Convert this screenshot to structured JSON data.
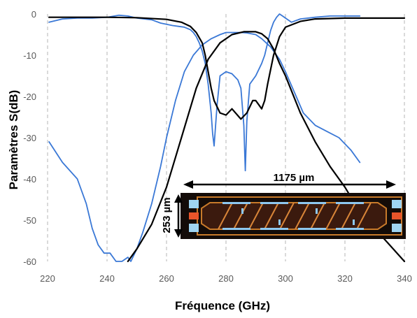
{
  "chart_data": {
    "type": "line",
    "xlabel": "Fréquence (GHz)",
    "ylabel": "Paramètres S(dB)",
    "xlim": [
      220,
      340
    ],
    "ylim": [
      -60,
      0
    ],
    "x_ticks": [
      "220",
      "240",
      "260",
      "280",
      "300",
      "320",
      "340"
    ],
    "y_ticks": [
      "0",
      "-10",
      "-20",
      "-30",
      "-40",
      "-50",
      "-60"
    ],
    "grid": "vertical dashed",
    "series": [
      {
        "color": "#3a78d6",
        "x": [
          220.5,
          225,
          230,
          235,
          240,
          244,
          247,
          250,
          255,
          258,
          260,
          262,
          264,
          266,
          268,
          269,
          270,
          271,
          272,
          273,
          274,
          275,
          275.5,
          276,
          277,
          278,
          280,
          282,
          284,
          285,
          286,
          286.5,
          287,
          288,
          290,
          292,
          293,
          294,
          295,
          296,
          297,
          298,
          299,
          300,
          302,
          305,
          310,
          315,
          320,
          325
        ],
        "y": [
          -2,
          -1.2,
          -1,
          -1,
          -0.8,
          -0.3,
          -0.5,
          -1,
          -1.4,
          -2.2,
          -2.5,
          -2.8,
          -3,
          -3.2,
          -3.8,
          -4.5,
          -5.5,
          -7,
          -9,
          -12,
          -17,
          -24,
          -29,
          -32,
          -22,
          -15,
          -14,
          -14.5,
          -16,
          -18,
          -27,
          -38,
          -26,
          -17,
          -15,
          -12,
          -10,
          -7,
          -4,
          -2,
          -0.8,
          0,
          -0.5,
          -1,
          -2,
          -1.2,
          -0.8,
          -0.5,
          -0.5,
          -0.5
        ]
      },
      {
        "color": "#3a78d6",
        "x": [
          220.5,
          225,
          230,
          233,
          235,
          237,
          239,
          241,
          243,
          245,
          247,
          248,
          250,
          252,
          255,
          258,
          260,
          263,
          266,
          269,
          272,
          275,
          278,
          280,
          283,
          285,
          287,
          290,
          292,
          295,
          298,
          300,
          303,
          306,
          310,
          314,
          318,
          322,
          325
        ],
        "y": [
          -31,
          -36,
          -40,
          -46,
          -52,
          -56,
          -58,
          -58,
          -60,
          -60,
          -59,
          -60,
          -57,
          -53,
          -46,
          -37,
          -30,
          -21,
          -14,
          -10,
          -7.5,
          -6,
          -5,
          -4.5,
          -4.5,
          -4.5,
          -4.6,
          -5,
          -6,
          -8,
          -11,
          -14,
          -19,
          -24,
          -27,
          -28.5,
          -30,
          -33,
          -36
        ]
      },
      {
        "color": "#000000",
        "x": [
          220.5,
          230,
          240,
          250,
          260,
          265,
          268,
          270,
          272,
          273,
          274,
          275,
          276,
          278,
          280,
          282,
          285,
          287,
          289,
          290,
          291,
          292,
          293,
          294,
          296,
          298,
          300,
          305,
          310,
          320,
          330,
          340
        ],
        "y": [
          -0.8,
          -0.8,
          -0.8,
          -0.9,
          -1.3,
          -2,
          -3,
          -4.5,
          -7,
          -10,
          -14,
          -18,
          -21,
          -24,
          -24.5,
          -23,
          -25.5,
          -24,
          -21,
          -21,
          -22,
          -23,
          -21,
          -17,
          -10,
          -5.5,
          -3.2,
          -1.8,
          -1.2,
          -1,
          -1,
          -1
        ]
      },
      {
        "color": "#000000",
        "x": [
          247,
          250,
          255,
          260,
          265,
          270,
          274,
          278,
          282,
          286,
          290,
          292,
          294,
          296,
          298,
          300,
          305,
          310,
          315,
          320,
          325,
          330,
          335,
          340
        ],
        "y": [
          -60,
          -57,
          -51,
          -42,
          -30,
          -18,
          -11,
          -7,
          -5,
          -4.3,
          -4.3,
          -4.8,
          -6,
          -8.5,
          -12,
          -15,
          -24,
          -31,
          -37,
          -42,
          -48,
          -52,
          -56,
          -60
        ]
      }
    ],
    "annotations": [
      "1175 µm",
      "253 µm"
    ]
  }
}
